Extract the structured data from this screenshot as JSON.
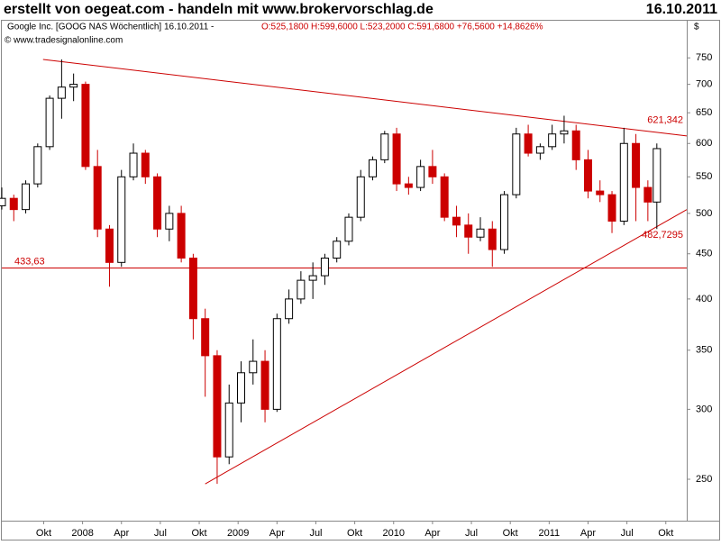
{
  "chart_data": {
    "type": "candlestick",
    "title": "erstellt von oegeat.com - handeln mit www.brokervorschlag.de",
    "date": "16.10.2011",
    "subtitle": "Google Inc. [GOOG NAS  Wöchentlich] 16.10.2011 -",
    "quote": "O:525,1800 H:599,6000 L:523,2000 C:591,6800 +76,5600 +14,8626%",
    "source": "© www.tradesignalonline.com",
    "currency": "$",
    "log_scale": true,
    "up_color": "#ffffff",
    "down_color": "#cc0000",
    "line_color": "#cc0000",
    "x": [
      0,
      4,
      8,
      12,
      16,
      20,
      24,
      28,
      32,
      36,
      40,
      44,
      48,
      52,
      56,
      60,
      64,
      68,
      72,
      76,
      80,
      84,
      88,
      92,
      96,
      100,
      104,
      108,
      112,
      116,
      120,
      124,
      128,
      132,
      136,
      140,
      144,
      148,
      152,
      156,
      160,
      164,
      168,
      172,
      176,
      180,
      184,
      188,
      192,
      196,
      200,
      204,
      208,
      212,
      216,
      219
    ],
    "open": [
      510,
      520,
      505,
      540,
      595,
      675,
      695,
      700,
      565,
      480,
      440,
      550,
      585,
      550,
      480,
      500,
      445,
      380,
      345,
      265,
      305,
      330,
      340,
      300,
      380,
      400,
      420,
      425,
      445,
      465,
      495,
      550,
      575,
      615,
      540,
      535,
      565,
      550,
      495,
      485,
      470,
      480,
      455,
      525,
      615,
      585,
      595,
      615,
      620,
      575,
      530,
      525,
      490,
      600,
      535,
      515
    ],
    "high": [
      535,
      525,
      545,
      600,
      680,
      747,
      720,
      705,
      590,
      485,
      560,
      600,
      590,
      555,
      510,
      510,
      450,
      390,
      350,
      320,
      340,
      360,
      350,
      385,
      410,
      430,
      440,
      450,
      470,
      500,
      560,
      580,
      620,
      625,
      550,
      575,
      590,
      555,
      510,
      500,
      495,
      490,
      530,
      625,
      630,
      600,
      630,
      645,
      630,
      590,
      545,
      530,
      625,
      615,
      545,
      600
    ],
    "low": [
      505,
      490,
      500,
      535,
      590,
      640,
      670,
      560,
      470,
      413,
      435,
      545,
      540,
      470,
      465,
      440,
      360,
      310,
      247,
      260,
      290,
      320,
      290,
      298,
      375,
      395,
      400,
      415,
      440,
      460,
      490,
      545,
      570,
      530,
      525,
      530,
      540,
      490,
      470,
      450,
      465,
      435,
      450,
      520,
      580,
      575,
      590,
      600,
      560,
      520,
      515,
      475,
      485,
      490,
      490,
      480
    ],
    "close": [
      520,
      505,
      540,
      595,
      675,
      695,
      700,
      565,
      480,
      440,
      550,
      585,
      550,
      480,
      500,
      445,
      380,
      345,
      265,
      305,
      330,
      340,
      300,
      380,
      400,
      420,
      425,
      445,
      465,
      495,
      550,
      575,
      615,
      540,
      535,
      565,
      550,
      495,
      485,
      470,
      480,
      455,
      525,
      615,
      585,
      595,
      615,
      620,
      575,
      530,
      525,
      490,
      600,
      535,
      515,
      592
    ],
    "xlim": [
      0,
      229
    ],
    "xticks": [
      {
        "value": 14,
        "label": "Okt"
      },
      {
        "value": 27,
        "label": "2008"
      },
      {
        "value": 40,
        "label": "Apr"
      },
      {
        "value": 53,
        "label": "Jul"
      },
      {
        "value": 66,
        "label": "Okt"
      },
      {
        "value": 79,
        "label": "2009"
      },
      {
        "value": 92,
        "label": "Apr"
      },
      {
        "value": 105,
        "label": "Jul"
      },
      {
        "value": 118,
        "label": "Okt"
      },
      {
        "value": 131,
        "label": "2010"
      },
      {
        "value": 144,
        "label": "Apr"
      },
      {
        "value": 157,
        "label": "Jul"
      },
      {
        "value": 170,
        "label": "Okt"
      },
      {
        "value": 183,
        "label": "2011"
      },
      {
        "value": 196,
        "label": "Apr"
      },
      {
        "value": 209,
        "label": "Jul"
      },
      {
        "value": 222,
        "label": "Okt"
      }
    ],
    "ylim": [
      224.4,
      781
    ],
    "yticks": [
      250,
      300,
      350,
      400,
      450,
      500,
      550,
      600,
      650,
      700,
      750
    ],
    "trend_lines": [
      {
        "start": [
          13.8,
          747
        ],
        "end": [
          229,
          612
        ],
        "value": 621.342,
        "label": "621,342"
      },
      {
        "start": [
          68,
          247
        ],
        "end": [
          229,
          505
        ],
        "value": 482.7295,
        "label": "482,7295"
      }
    ],
    "hline": {
      "value": 433.63,
      "label": "433,63"
    }
  }
}
